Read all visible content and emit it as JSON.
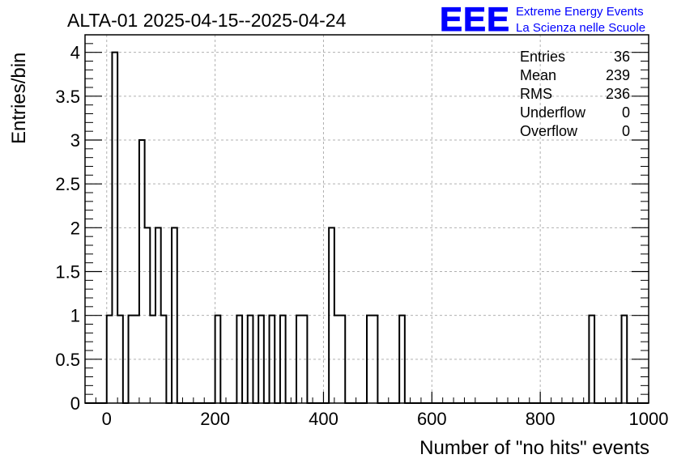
{
  "chart_data": {
    "type": "bar",
    "title": "ALTA-01 2025-04-15--2025-04-24",
    "xlabel": "Number of \"no hits\" events",
    "ylabel": "Entries/bin",
    "xlim": [
      -40,
      1000
    ],
    "ylim": [
      0,
      4.2
    ],
    "bin_width": 10,
    "grid": true,
    "x_ticks": [
      "0",
      "200",
      "400",
      "600",
      "800",
      "1000"
    ],
    "y_ticks": [
      "0",
      "0.5",
      "1",
      "1.5",
      "2",
      "2.5",
      "3",
      "3.5",
      "4"
    ],
    "bins": [
      {
        "x0": 0,
        "value": 1
      },
      {
        "x0": 10,
        "value": 4
      },
      {
        "x0": 20,
        "value": 1
      },
      {
        "x0": 40,
        "value": 1
      },
      {
        "x0": 50,
        "value": 1
      },
      {
        "x0": 60,
        "value": 3
      },
      {
        "x0": 70,
        "value": 2
      },
      {
        "x0": 80,
        "value": 1
      },
      {
        "x0": 90,
        "value": 2
      },
      {
        "x0": 100,
        "value": 1
      },
      {
        "x0": 120,
        "value": 2
      },
      {
        "x0": 200,
        "value": 1
      },
      {
        "x0": 240,
        "value": 1
      },
      {
        "x0": 260,
        "value": 1
      },
      {
        "x0": 280,
        "value": 1
      },
      {
        "x0": 300,
        "value": 1
      },
      {
        "x0": 320,
        "value": 1
      },
      {
        "x0": 350,
        "value": 1
      },
      {
        "x0": 360,
        "value": 1
      },
      {
        "x0": 410,
        "value": 2
      },
      {
        "x0": 420,
        "value": 1
      },
      {
        "x0": 430,
        "value": 1
      },
      {
        "x0": 480,
        "value": 1
      },
      {
        "x0": 490,
        "value": 1
      },
      {
        "x0": 540,
        "value": 1
      },
      {
        "x0": 890,
        "value": 1
      },
      {
        "x0": 950,
        "value": 1
      }
    ],
    "stats": {
      "rows": [
        {
          "label": "Entries",
          "value": "36"
        },
        {
          "label": "Mean",
          "value": "239"
        },
        {
          "label": "RMS",
          "value": "236"
        },
        {
          "label": "Underflow",
          "value": "0"
        },
        {
          "label": "Overflow",
          "value": "0"
        }
      ],
      "placement": "top-right"
    }
  },
  "logo": {
    "mark": "EEE",
    "line1": "Extreme Energy Events",
    "line2": "La Scienza nelle Scuole",
    "color": "#0000ff"
  },
  "colors": {
    "line": "#000000",
    "grid": "#b0b0b0"
  }
}
